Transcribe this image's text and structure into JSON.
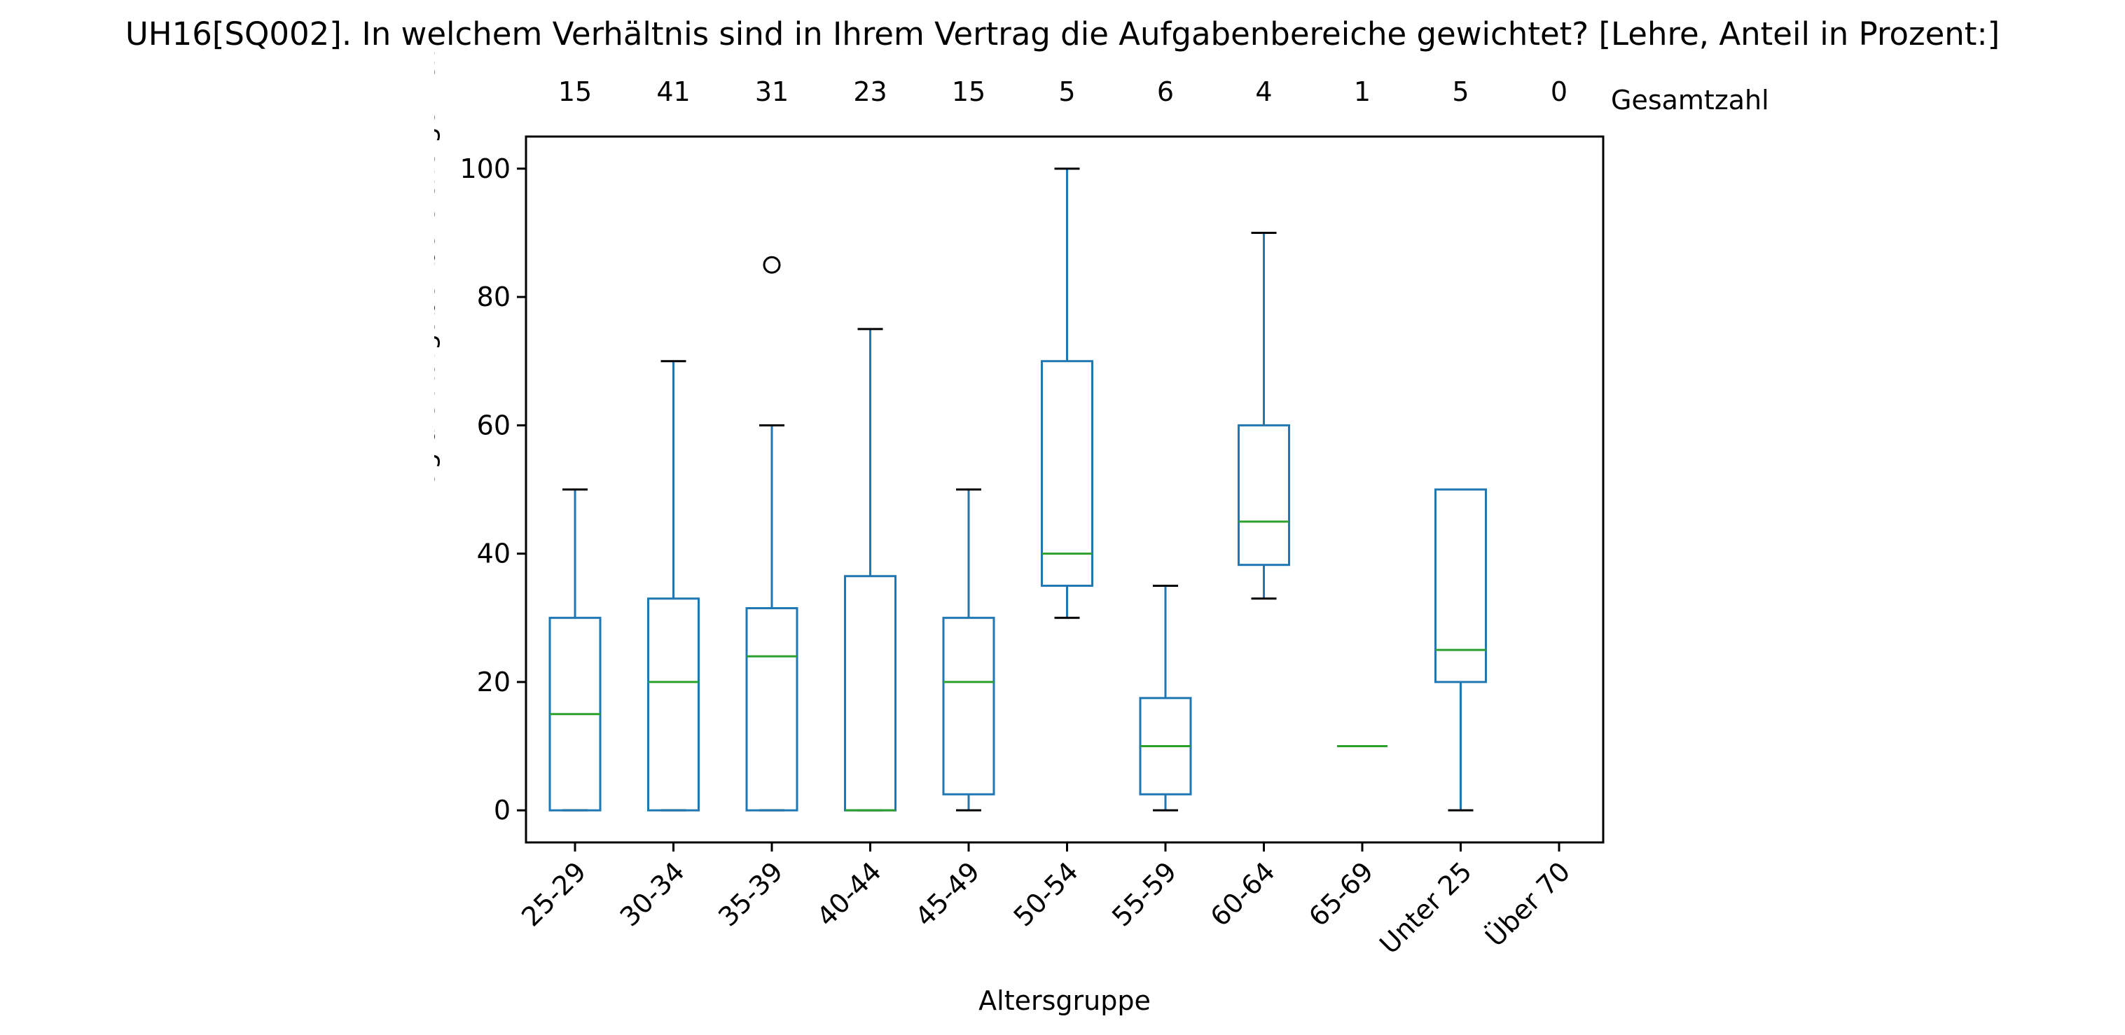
{
  "chart_data": {
    "type": "box",
    "title": "UH16[SQ002]. In welchem Verhältnis sind in Ihrem Vertrag die Aufgabenbereiche gewichtet? [Lehre, Anteil in Prozent:]",
    "xlabel": "Altersgruppe",
    "ylabel": "In welchem Verhältnis sind in Ihrem Vertrag die Aufgabenbereiche gewichtet?",
    "counts_label": "Gesamtzahl",
    "categories": [
      "25-29",
      "30-34",
      "35-39",
      "40-44",
      "45-49",
      "50-54",
      "55-59",
      "60-64",
      "65-69",
      "Unter 25",
      "Über 70"
    ],
    "counts": [
      15,
      41,
      31,
      23,
      15,
      5,
      6,
      4,
      1,
      5,
      0
    ],
    "yticks": [
      0,
      20,
      40,
      60,
      80,
      100
    ],
    "ylim": [
      -5,
      105
    ],
    "grid": false,
    "boxes": [
      {
        "category": "25-29",
        "whisker_low": 0,
        "q1": 0,
        "median": 15,
        "q3": 30,
        "whisker_high": 50,
        "outliers": []
      },
      {
        "category": "30-34",
        "whisker_low": 0,
        "q1": 0,
        "median": 20,
        "q3": 33,
        "whisker_high": 70,
        "outliers": []
      },
      {
        "category": "35-39",
        "whisker_low": 0,
        "q1": 0,
        "median": 24,
        "q3": 31.5,
        "whisker_high": 60,
        "outliers": [
          85
        ]
      },
      {
        "category": "40-44",
        "whisker_low": 0,
        "q1": 0,
        "median": 0,
        "q3": 36.5,
        "whisker_high": 75,
        "outliers": []
      },
      {
        "category": "45-49",
        "whisker_low": 0,
        "q1": 2.5,
        "median": 20,
        "q3": 30,
        "whisker_high": 50,
        "outliers": []
      },
      {
        "category": "50-54",
        "whisker_low": 30,
        "q1": 35,
        "median": 40,
        "q3": 70,
        "whisker_high": 100,
        "outliers": []
      },
      {
        "category": "55-59",
        "whisker_low": 0,
        "q1": 2.5,
        "median": 10,
        "q3": 17.5,
        "whisker_high": 35,
        "outliers": []
      },
      {
        "category": "60-64",
        "whisker_low": 33,
        "q1": 38.25,
        "median": 45,
        "q3": 60,
        "whisker_high": 90,
        "outliers": []
      },
      {
        "category": "65-69",
        "whisker_low": 10,
        "q1": 10,
        "median": 10,
        "q3": 10,
        "whisker_high": 10,
        "outliers": []
      },
      {
        "category": "Unter 25",
        "whisker_low": 0,
        "q1": 20,
        "median": 25,
        "q3": 50,
        "whisker_high": 50,
        "outliers": []
      },
      {
        "category": "Über 70",
        "whisker_low": null,
        "q1": null,
        "median": null,
        "q3": null,
        "whisker_high": null,
        "outliers": []
      }
    ],
    "colors": {
      "box": "#1f77b4",
      "median": "#2ca02c",
      "whisker_cap": "#000000",
      "outlier": "#000000"
    }
  }
}
